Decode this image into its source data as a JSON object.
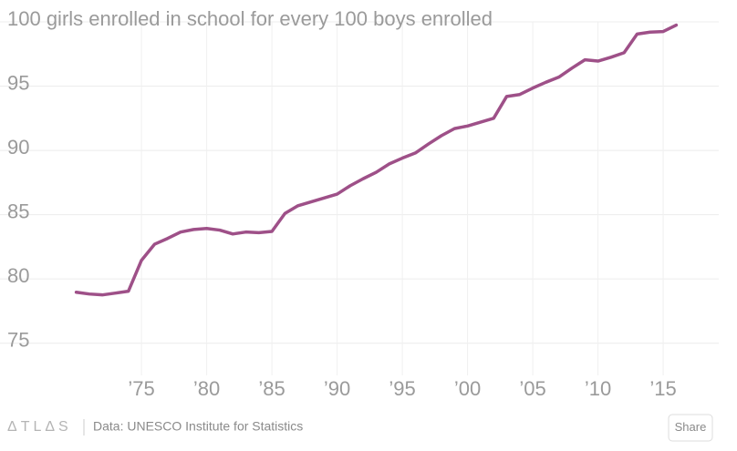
{
  "chart_data": {
    "type": "line",
    "x": [
      1970,
      1971,
      1972,
      1973,
      1974,
      1975,
      1976,
      1977,
      1978,
      1979,
      1980,
      1981,
      1982,
      1983,
      1984,
      1985,
      1986,
      1987,
      1988,
      1989,
      1990,
      1991,
      1992,
      1993,
      1994,
      1995,
      1996,
      1997,
      1998,
      1999,
      2000,
      2001,
      2002,
      2003,
      2004,
      2005,
      2006,
      2007,
      2008,
      2009,
      2010,
      2011,
      2012,
      2013,
      2014,
      2015,
      2016
    ],
    "series": [
      {
        "color": "#9e5088",
        "values": [
          78.97,
          78.83,
          78.76,
          78.9,
          79.05,
          81.45,
          82.7,
          83.15,
          83.65,
          83.85,
          83.93,
          83.8,
          83.5,
          83.65,
          83.6,
          83.7,
          85.1,
          85.7,
          86.0,
          86.3,
          86.6,
          87.25,
          87.8,
          88.3,
          88.95,
          89.4,
          89.8,
          90.5,
          91.15,
          91.7,
          91.9,
          92.2,
          92.5,
          94.2,
          94.35,
          94.85,
          95.3,
          95.7,
          96.4,
          97.05,
          96.95,
          97.25,
          97.6,
          99.05,
          99.2,
          99.25,
          99.75
        ]
      }
    ],
    "xlim": [
      1968,
      2018.7
    ],
    "xticks": [
      {
        "value": 1975,
        "label": "’75"
      },
      {
        "value": 1980,
        "label": "’80"
      },
      {
        "value": 1985,
        "label": "’85"
      },
      {
        "value": 1990,
        "label": "’90"
      },
      {
        "value": 1995,
        "label": "’95"
      },
      {
        "value": 2000,
        "label": "’00"
      },
      {
        "value": 2005,
        "label": "’05"
      },
      {
        "value": 2010,
        "label": "’10"
      },
      {
        "value": 2015,
        "label": "’15"
      }
    ],
    "ylim": [
      72.5,
      100
    ],
    "yticks": [
      75,
      80,
      85,
      90,
      95,
      {
        "value": 100,
        "label": "100 girls enrolled in school for every 100 boys enrolled"
      }
    ],
    "grid": true
  },
  "footer": {
    "logo": "ΔTLΔS",
    "source": "Data: UNESCO Institute for Statistics",
    "share": "Share"
  }
}
